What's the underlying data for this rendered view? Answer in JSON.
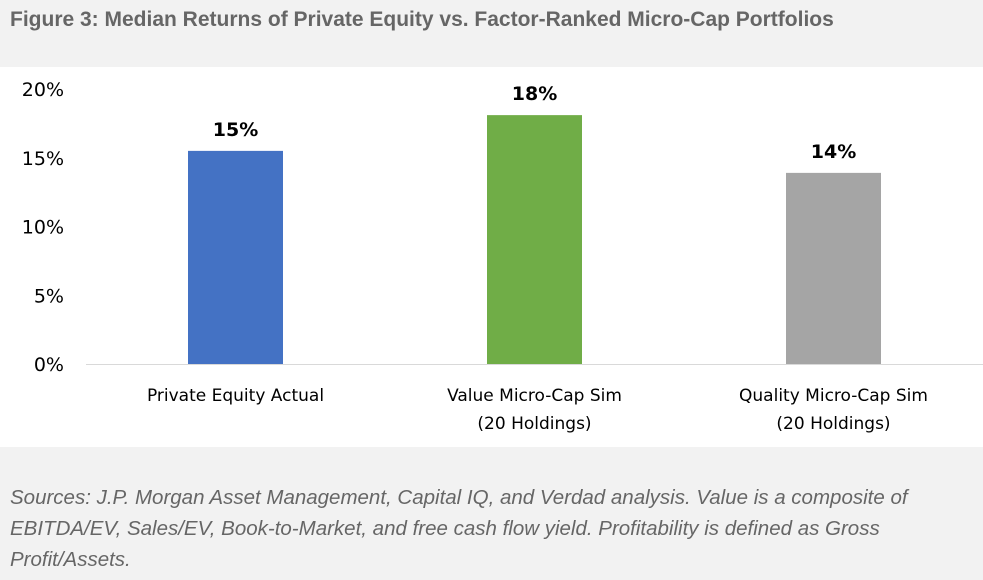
{
  "title": "Figure 3: Median Returns of Private Equity vs. Factor-Ranked Micro-Cap Portfolios",
  "caption": "Sources: J.P. Morgan Asset Management, Capital IQ, and Verdad analysis. Value is a composite of EBITDA/EV, Sales/EV, Book-to-Market, and free cash flow yield. Profitability is defined as Gross Profit/Assets.",
  "chart_data": {
    "type": "bar",
    "categories": [
      [
        "Private Equity Actual"
      ],
      [
        "Value Micro-Cap Sim",
        "(20 Holdings)"
      ],
      [
        "Quality Micro-Cap Sim",
        "(20 Holdings)"
      ]
    ],
    "values": [
      15.5,
      18.1,
      13.9
    ],
    "data_labels": [
      "15%",
      "18%",
      "14%"
    ],
    "colors": [
      "#4472c4",
      "#70ad47",
      "#a5a5a5"
    ],
    "ylim": [
      0,
      20
    ],
    "yticks": [
      0,
      5,
      10,
      15,
      20
    ],
    "ytick_labels": [
      "0%",
      "5%",
      "10%",
      "15%",
      "20%"
    ],
    "grid": false,
    "legend": "none"
  }
}
